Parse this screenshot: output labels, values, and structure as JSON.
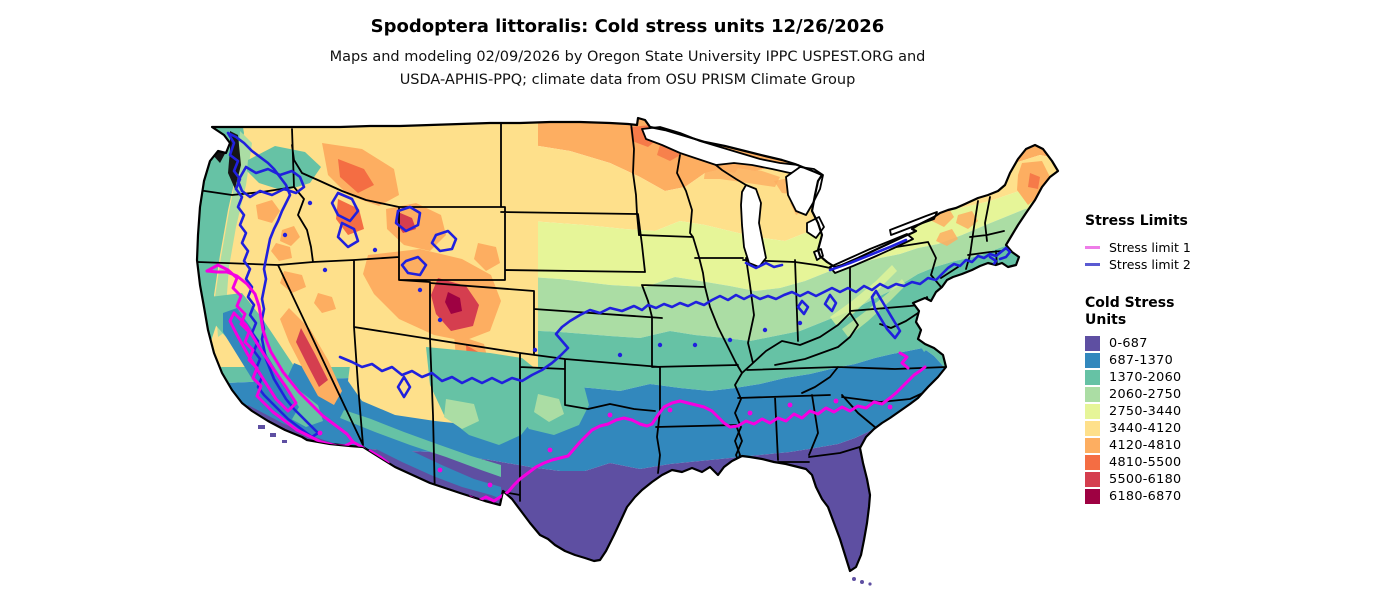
{
  "header": {
    "title": "Spodoptera littoralis: Cold stress units 12/26/2026",
    "subtitle_line1": "Maps and modeling 02/09/2026 by Oregon State University IPPC USPEST.ORG and",
    "subtitle_line2": "USDA-APHIS-PPQ; climate data from OSU PRISM Climate Group"
  },
  "legend": {
    "stress_limits": {
      "heading": "Stress Limits",
      "items": [
        {
          "label": "Stress limit 1",
          "legend_color": "#ee7ce8",
          "map_color": "#f500e1"
        },
        {
          "label": "Stress limit 2",
          "legend_color": "#5a5ad2",
          "map_color": "#2020dd"
        }
      ]
    },
    "cold_stress": {
      "heading_line1": "Cold Stress",
      "heading_line2": "Units",
      "classes": [
        {
          "label": "0-687",
          "color": "#5e4fa2"
        },
        {
          "label": "687-1370",
          "color": "#3288bd"
        },
        {
          "label": "1370-2060",
          "color": "#66c2a5"
        },
        {
          "label": "2060-2750",
          "color": "#abdda4"
        },
        {
          "label": "2750-3440",
          "color": "#e6f598"
        },
        {
          "label": "3440-4120",
          "color": "#fee08b"
        },
        {
          "label": "4120-4810",
          "color": "#fdae61"
        },
        {
          "label": "4810-5500",
          "color": "#f46d43"
        },
        {
          "label": "5500-6180",
          "color": "#d53e4f"
        },
        {
          "label": "6180-6870",
          "color": "#9e0142"
        }
      ]
    }
  }
}
